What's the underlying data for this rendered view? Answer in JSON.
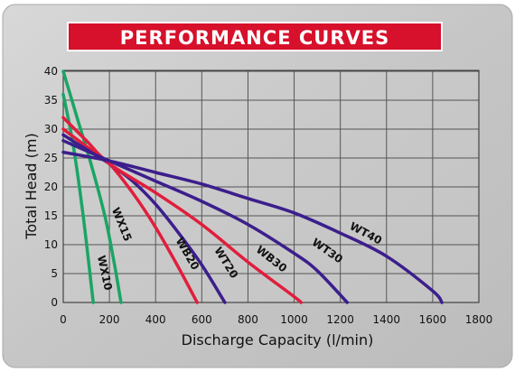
{
  "chart_data": {
    "type": "line",
    "title": "PERFORMANCE CURVES",
    "xlabel": "Discharge Capacity (l/min)",
    "ylabel": "Total Head (m)",
    "xlim": [
      0,
      1800
    ],
    "ylim": [
      0,
      42
    ],
    "x_ticks": [
      "0",
      "200",
      "400",
      "600",
      "800",
      "1000",
      "1200",
      "1400",
      "1600",
      "1800"
    ],
    "y_ticks": [
      "0",
      "5",
      "10",
      "15",
      "20",
      "25",
      "30",
      "35",
      "40"
    ],
    "grid": true,
    "legend": "none",
    "colors": {
      "green": "#1aa564",
      "red": "#e01e3c",
      "purple": "#3c1e8c",
      "banner": "#d7102b",
      "panel": "#c9c9c9"
    },
    "series": [
      {
        "name": "WX10",
        "color": "green",
        "x": [
          0,
          40,
          80,
          110,
          130
        ],
        "y": [
          36,
          28,
          17,
          7,
          0
        ]
      },
      {
        "name": "WX15",
        "color": "green",
        "x": [
          0,
          60,
          120,
          180,
          220,
          250
        ],
        "y": [
          40,
          32,
          24,
          15,
          7,
          0
        ]
      },
      {
        "name": "WB20",
        "color": "red",
        "x": [
          0,
          100,
          200,
          300,
          400,
          500,
          580
        ],
        "y": [
          30,
          27,
          24,
          19,
          13,
          6,
          0
        ]
      },
      {
        "name": "WT20",
        "color": "purple",
        "x": [
          0,
          100,
          200,
          300,
          400,
          500,
          600,
          700
        ],
        "y": [
          29,
          26.5,
          24,
          21,
          17,
          12,
          6.5,
          0
        ]
      },
      {
        "name": "WB30",
        "color": "red",
        "x": [
          0,
          100,
          200,
          400,
          600,
          800,
          1000,
          1030
        ],
        "y": [
          32,
          28,
          24,
          19,
          13.5,
          7,
          1,
          0
        ]
      },
      {
        "name": "WT30",
        "color": "purple",
        "x": [
          0,
          200,
          400,
          600,
          800,
          1000,
          1100,
          1230
        ],
        "y": [
          28,
          24.5,
          21,
          17.5,
          13.5,
          8.5,
          5.5,
          0
        ]
      },
      {
        "name": "WT40",
        "color": "purple",
        "x": [
          0,
          200,
          400,
          600,
          800,
          1000,
          1200,
          1400,
          1600,
          1640
        ],
        "y": [
          26,
          24.5,
          22.5,
          20.5,
          18,
          15.5,
          12,
          8,
          2,
          0
        ]
      }
    ]
  }
}
